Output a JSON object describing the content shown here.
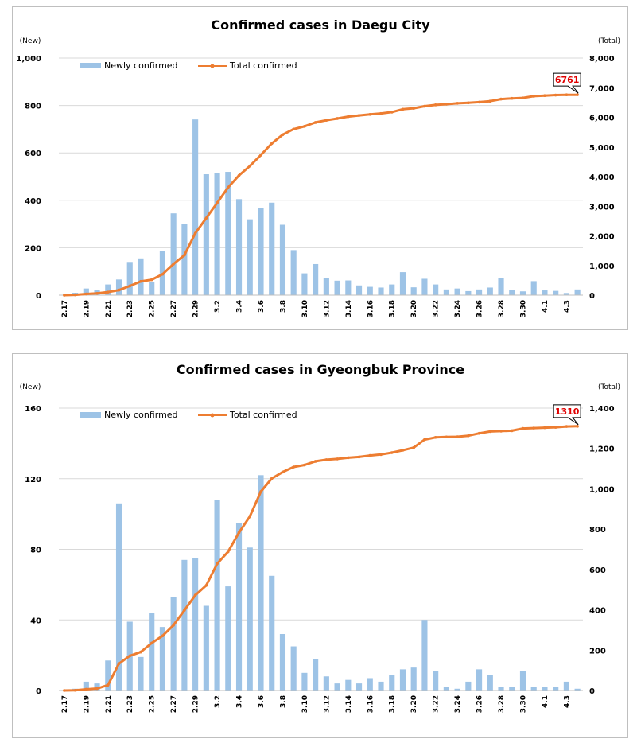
{
  "chart_data": [
    {
      "type": "bar",
      "title": "Confirmed cases in Daegu City",
      "left_axis_unit": "(New)",
      "right_axis_unit": "(Total)",
      "y_left_ticks": [
        "0",
        "200",
        "400",
        "600",
        "800",
        "1,000"
      ],
      "y_right_ticks": [
        "0",
        "1,000",
        "2,000",
        "3,000",
        "4,000",
        "5,000",
        "6,000",
        "7,000",
        "8,000"
      ],
      "ylim_left": [
        0,
        1000
      ],
      "ylim_right": [
        0,
        8000
      ],
      "x_tick_labels": [
        "2.17",
        "2.19",
        "2.21",
        "2.23",
        "2.25",
        "2.27",
        "2.29",
        "3.2",
        "3.4",
        "3.6",
        "3.8",
        "3.10",
        "3.12",
        "3.14",
        "3.16",
        "3.18",
        "3.20",
        "3.22",
        "3.24",
        "3.26",
        "3.28",
        "3.30",
        "4.1",
        "4.3"
      ],
      "categories": [
        "2.17",
        "2.18",
        "2.19",
        "2.20",
        "2.21",
        "2.22",
        "2.23",
        "2.24",
        "2.25",
        "2.26",
        "2.27",
        "2.28",
        "2.29",
        "3.1",
        "3.2",
        "3.3",
        "3.4",
        "3.5",
        "3.6",
        "3.7",
        "3.8",
        "3.9",
        "3.10",
        "3.11",
        "3.12",
        "3.13",
        "3.14",
        "3.15",
        "3.16",
        "3.17",
        "3.18",
        "3.19",
        "3.20",
        "3.21",
        "3.22",
        "3.23",
        "3.24",
        "3.25",
        "3.26",
        "3.27",
        "3.28",
        "3.29",
        "3.30",
        "3.31",
        "4.1",
        "4.2",
        "4.3",
        "4.4"
      ],
      "series": [
        {
          "name": "Newly confirmed",
          "kind": "bar",
          "axis": "left",
          "color": "#9dc3e6",
          "values": [
            1,
            10,
            28,
            20,
            45,
            66,
            140,
            155,
            55,
            185,
            345,
            300,
            741,
            510,
            515,
            520,
            405,
            320,
            367,
            390,
            297,
            190,
            92,
            131,
            73,
            61,
            62,
            41,
            35,
            32,
            45,
            97,
            33,
            69,
            45,
            24,
            28,
            17,
            24,
            32,
            71,
            22,
            16,
            59,
            20,
            18,
            9,
            24
          ]
        },
        {
          "name": "Total confirmed",
          "kind": "line",
          "axis": "right",
          "color": "#ed7d31",
          "values": [
            1,
            11,
            39,
            59,
            104,
            170,
            310,
            465,
            520,
            705,
            1050,
            1350,
            2090,
            2600,
            3115,
            3635,
            4040,
            4360,
            4727,
            5117,
            5414,
            5604,
            5696,
            5827,
            5900,
            5961,
            6023,
            6064,
            6099,
            6131,
            6176,
            6273,
            6306,
            6375,
            6420,
            6444,
            6472,
            6489,
            6513,
            6545,
            6616,
            6638,
            6654,
            6713,
            6733,
            6751,
            6760,
            6761
          ]
        }
      ],
      "callout": "6761",
      "legend_position": "top-left"
    },
    {
      "type": "bar",
      "title": "Confirmed cases in Gyeongbuk Province",
      "left_axis_unit": "(New)",
      "right_axis_unit": "(Total)",
      "y_left_ticks": [
        "0",
        "40",
        "80",
        "120",
        "160"
      ],
      "y_right_ticks": [
        "0",
        "200",
        "400",
        "600",
        "800",
        "1,000",
        "1,200",
        "1,400"
      ],
      "ylim_left": [
        0,
        160
      ],
      "ylim_right": [
        0,
        1400
      ],
      "x_tick_labels": [
        "2.17",
        "2.19",
        "2.21",
        "2.23",
        "2.25",
        "2.27",
        "2.29",
        "3.2",
        "3.4",
        "3.6",
        "3.8",
        "3.10",
        "3.12",
        "3.14",
        "3.16",
        "3.18",
        "3.20",
        "3.22",
        "3.24",
        "3.26",
        "3.28",
        "3.30",
        "4.1",
        "4.3"
      ],
      "categories": [
        "2.17",
        "2.18",
        "2.19",
        "2.20",
        "2.21",
        "2.22",
        "2.23",
        "2.24",
        "2.25",
        "2.26",
        "2.27",
        "2.28",
        "2.29",
        "3.1",
        "3.2",
        "3.3",
        "3.4",
        "3.5",
        "3.6",
        "3.7",
        "3.8",
        "3.9",
        "3.10",
        "3.11",
        "3.12",
        "3.13",
        "3.14",
        "3.15",
        "3.16",
        "3.17",
        "3.18",
        "3.19",
        "3.20",
        "3.21",
        "3.22",
        "3.23",
        "3.24",
        "3.25",
        "3.26",
        "3.27",
        "3.28",
        "3.29",
        "3.30",
        "3.31",
        "4.1",
        "4.2",
        "4.3",
        "4.4"
      ],
      "series": [
        {
          "name": "Newly confirmed",
          "kind": "bar",
          "axis": "left",
          "color": "#9dc3e6",
          "values": [
            0,
            1,
            5,
            4,
            17,
            106,
            39,
            19,
            44,
            36,
            53,
            74,
            75,
            48,
            108,
            59,
            95,
            81,
            122,
            65,
            32,
            25,
            10,
            18,
            8,
            4,
            6,
            4,
            7,
            5,
            9,
            12,
            13,
            40,
            11,
            2,
            1,
            5,
            12,
            9,
            2,
            2,
            11,
            2,
            2,
            2,
            5,
            1
          ]
        },
        {
          "name": "Total confirmed",
          "kind": "line",
          "axis": "right",
          "color": "#ed7d31",
          "values": [
            0,
            1,
            6,
            10,
            27,
            133,
            172,
            191,
            235,
            271,
            324,
            398,
            473,
            521,
            629,
            688,
            783,
            864,
            986,
            1051,
            1083,
            1108,
            1118,
            1136,
            1144,
            1148,
            1154,
            1158,
            1165,
            1170,
            1179,
            1191,
            1204,
            1244,
            1255,
            1257,
            1258,
            1263,
            1275,
            1284,
            1286,
            1288,
            1299,
            1301,
            1303,
            1305,
            1309,
            1310
          ]
        }
      ],
      "callout": "1310",
      "legend_position": "top-left"
    }
  ]
}
